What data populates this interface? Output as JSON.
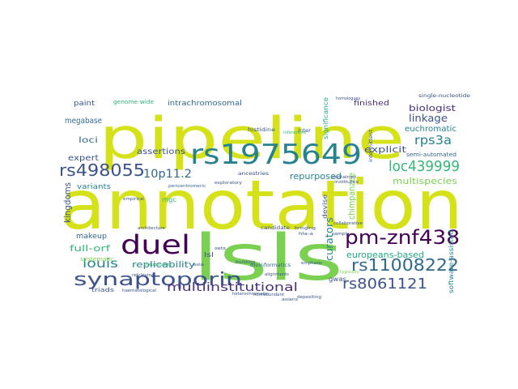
{
  "palette": {
    "yellow": "#d5e21a",
    "lime": "#7ad151",
    "green": "#35b779",
    "teal": "#22a884",
    "cyan": "#1f9a8a",
    "blue": "#26828e",
    "steel": "#31688e",
    "indigo": "#3b528b",
    "violet": "#472f7d",
    "dark": "#440154"
  },
  "words": [
    "pipeline",
    "annotation",
    "lsls",
    "rs1975649",
    "duel",
    "synaptoporin",
    "pm-znf438",
    "rs11008222",
    "rs498055",
    "rs8061121",
    "loc439999",
    "multiinstitutional",
    "louis",
    "10p11.2",
    "rps3a",
    "linkage",
    "explicit",
    "biologist",
    "euchromatic",
    "multispecies",
    "repurposed",
    "europeans-based",
    "replicability",
    "full-orf",
    "curators",
    "kingdoms",
    "expert",
    "makeup",
    "megabase",
    "loci",
    "assertions",
    "variants",
    "finished",
    "intrachromosomal",
    "paint",
    "genome-wide",
    "semi-automated",
    "systematic",
    "triads",
    "gwas",
    "mgc",
    "lsl",
    "chimpanzee",
    "software-assisted",
    "single-nucleotide",
    "histidine",
    "ancestries",
    "inter",
    "significance",
    "candidate",
    "devise",
    "bioinformatics",
    "exploratory",
    "pericentromeric",
    "contained",
    "institutes",
    "empirical",
    "architecture",
    "hla-a",
    "emphasis",
    "depositing",
    "pseudogenes",
    "bringing",
    "nonredundant",
    "alignments",
    "building",
    "asians",
    "retrieving",
    "haematological",
    "heterochromatic",
    "asia",
    "sets",
    "typically",
    "collaborative",
    "sample",
    "homologues",
    "inferences",
    "intermittent"
  ]
}
